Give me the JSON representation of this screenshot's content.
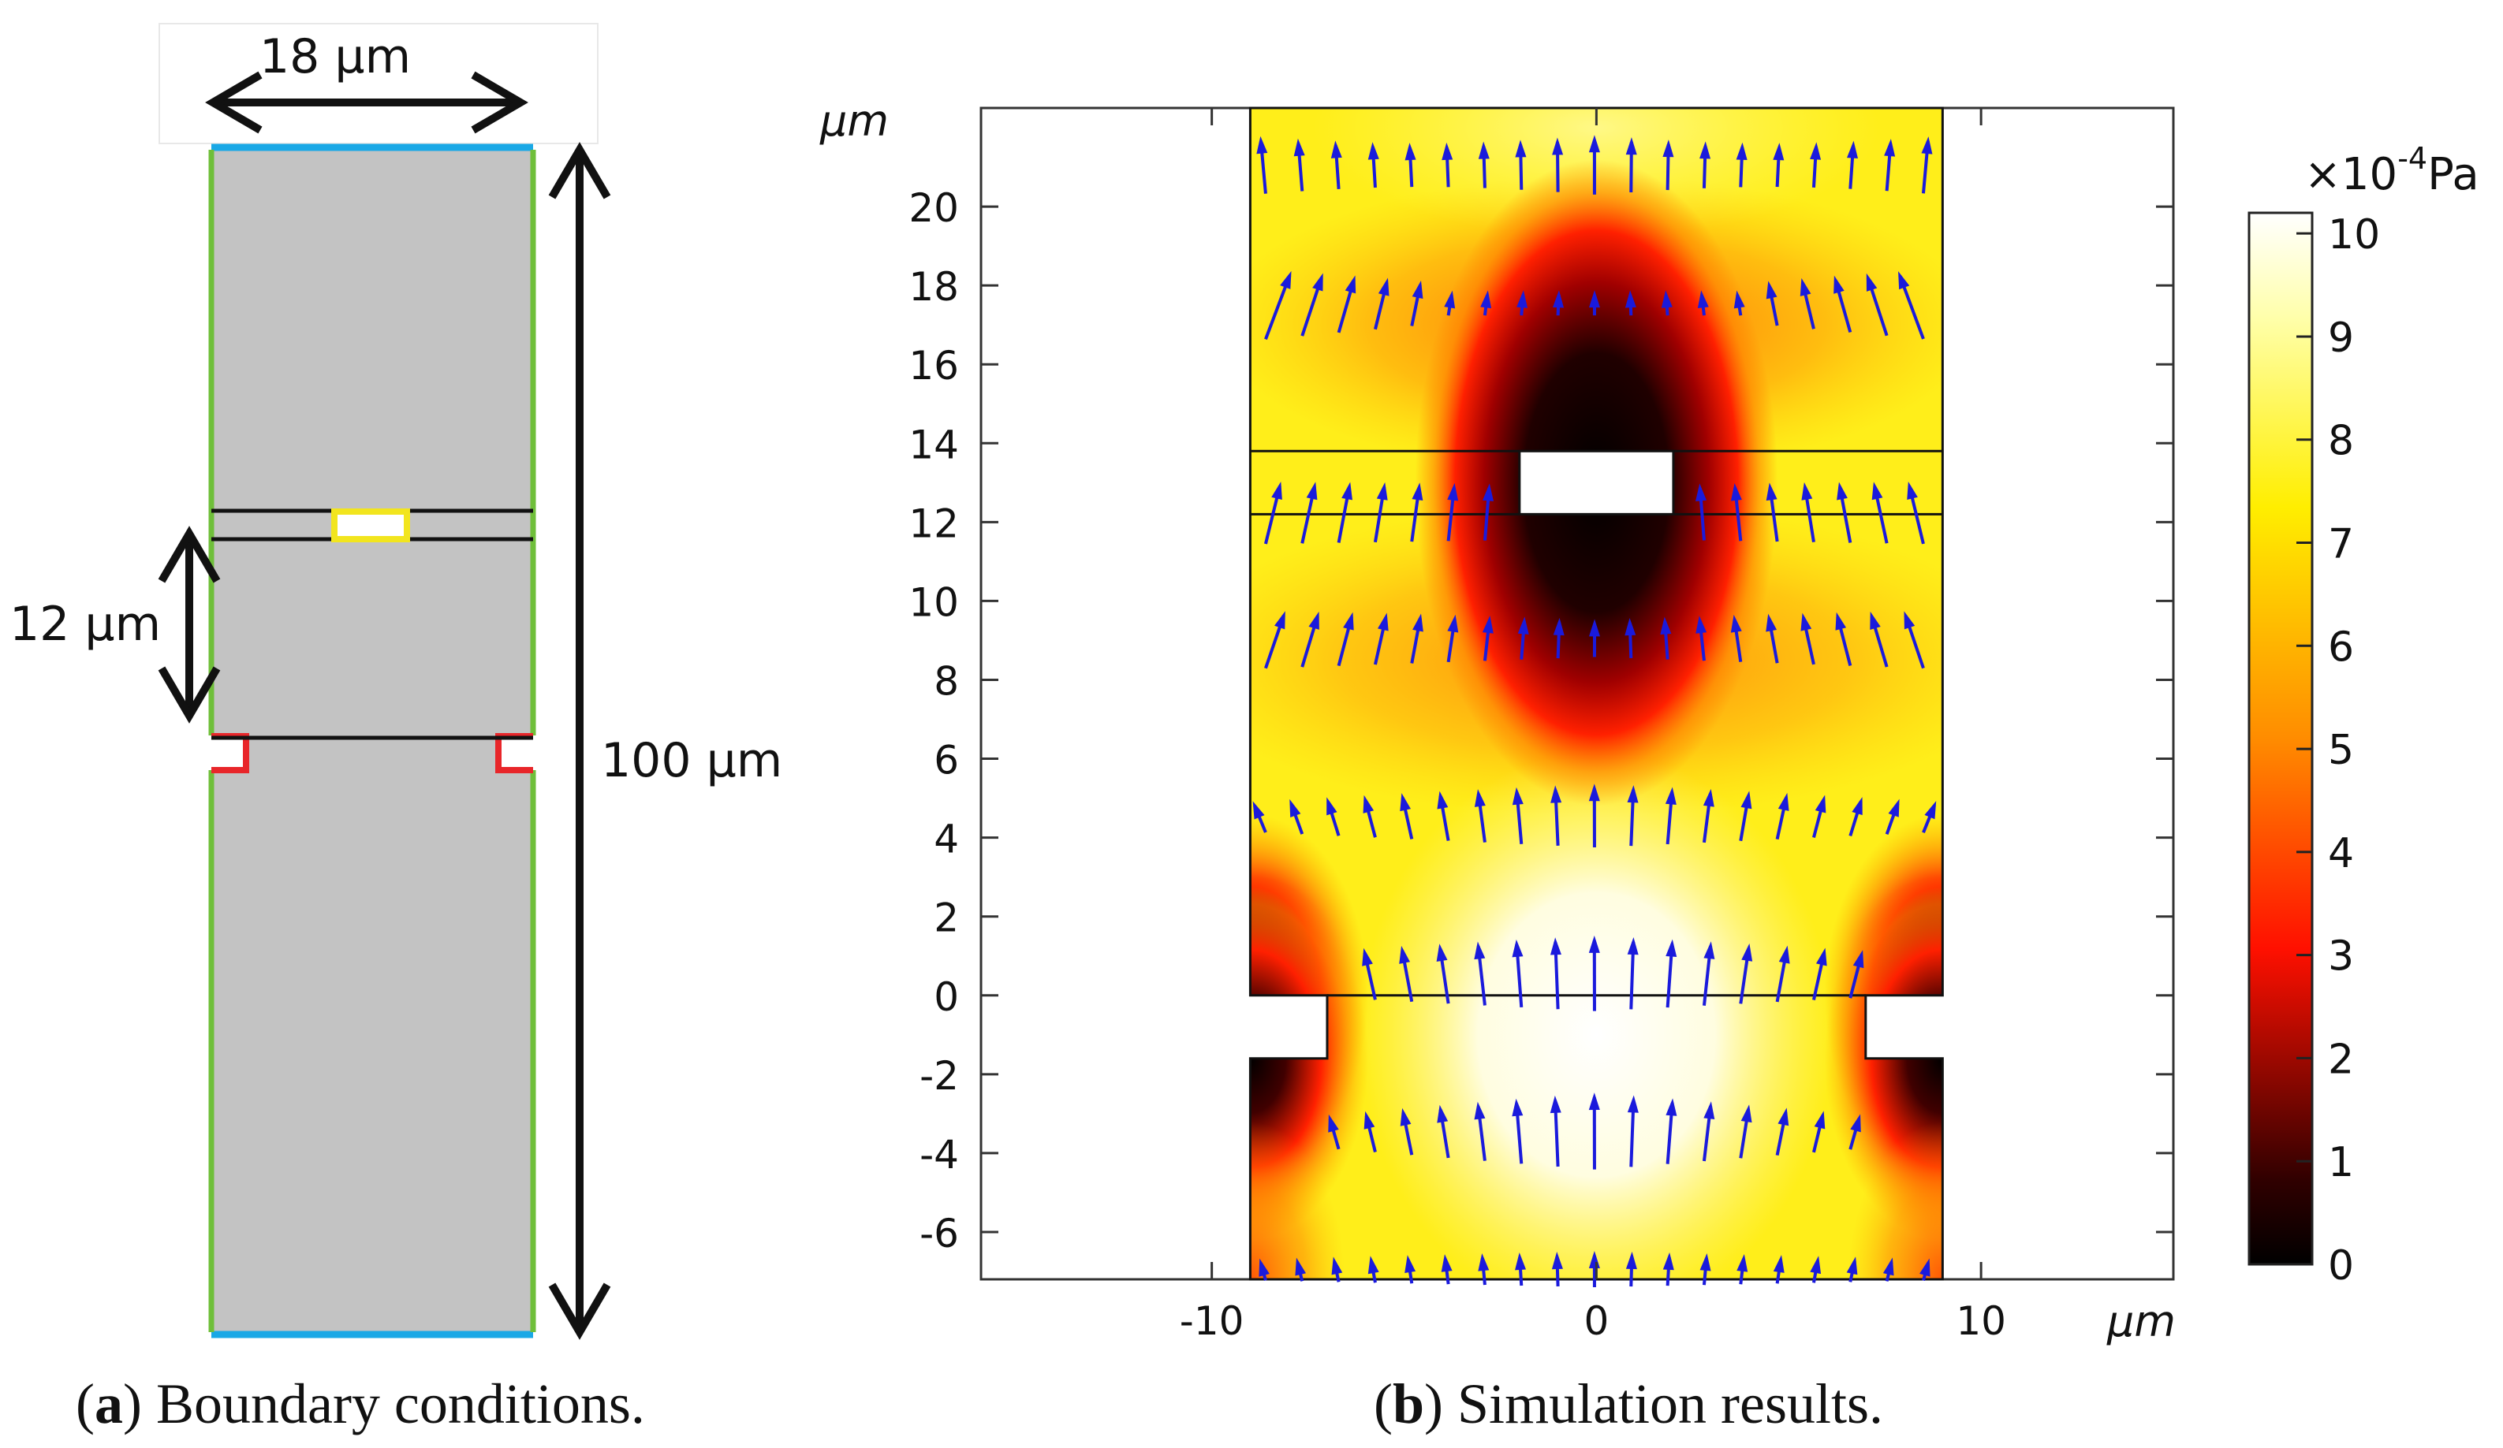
{
  "panel_a": {
    "width_label": "18 μm",
    "gap_label": "12 μm",
    "height_label": "100 μm",
    "caption_letter": "a",
    "caption_text": "Boundary conditions.",
    "colors": {
      "domain": "#c3c3c3",
      "inlet_outlet": "#19a8e6",
      "walls": "#6fbf3a",
      "electrodes": "#e8262a",
      "particle": "#f2e51e"
    }
  },
  "panel_b": {
    "caption_letter": "b",
    "caption_text": "Simulation results.",
    "x_unit": "μm",
    "y_unit": "μm",
    "colorbar_unit": "×10",
    "colorbar_exponent": "-4",
    "colorbar_unit_pa": "Pa",
    "colorbar_ticks": [
      "0",
      "1",
      "2",
      "3",
      "4",
      "5",
      "6",
      "7",
      "8",
      "9",
      "10"
    ],
    "colors": {
      "arrows": "#1a1adc"
    }
  },
  "chart_data": {
    "type": "heatmap",
    "title": "",
    "xlabel": "μm",
    "ylabel": "μm",
    "xlim": [
      -16,
      15
    ],
    "ylim": [
      -7.2,
      22.5
    ],
    "x_ticks": [
      -10,
      0,
      10
    ],
    "x_tick_labels": [
      "-10",
      "0",
      "10"
    ],
    "y_ticks": [
      -6,
      -4,
      -2,
      0,
      2,
      4,
      6,
      8,
      10,
      12,
      14,
      16,
      18,
      20
    ],
    "y_tick_labels": [
      "-6",
      "-4",
      "-2",
      "0",
      "2",
      "4",
      "6",
      "8",
      "10",
      "12",
      "14",
      "16",
      "18",
      "20"
    ],
    "channel_x_range": [
      -9,
      9
    ],
    "constriction_x_range": [
      -7,
      7
    ],
    "constriction_y_range": [
      -1.6,
      0
    ],
    "particle_box": {
      "x": [
        -2,
        2
      ],
      "y": [
        12.2,
        13.8
      ]
    },
    "colorbar": {
      "label": "×10^-4 Pa",
      "range": [
        0,
        10.2
      ]
    },
    "arrow_rows_y": [
      21,
      17.5,
      12.2,
      9,
      4.5,
      0.5,
      -3.5,
      -7
    ]
  }
}
